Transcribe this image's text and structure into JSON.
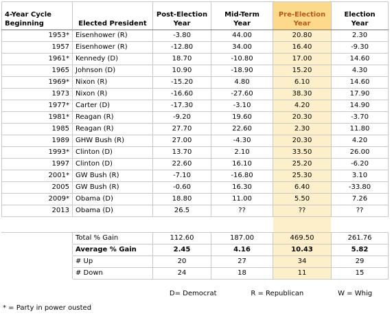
{
  "header": {
    "columns": [
      [
        "4-Year Cycle",
        "Beginning"
      ],
      [
        "Elected President"
      ],
      [
        "Post-Election",
        "Year"
      ],
      [
        "Mid-Term",
        "Year"
      ],
      [
        "Pre-Election",
        "Year"
      ],
      [
        "Election",
        "Year"
      ]
    ]
  },
  "table": {
    "rows": [
      [
        "1953*",
        "Eisenhower (R)",
        "-3.80",
        "44.00",
        "20.80",
        "2.30"
      ],
      [
        "1957",
        "Eisenhower (R)",
        "-12.80",
        "34.00",
        "16.40",
        "-9.30"
      ],
      [
        "1961*",
        "Kennedy (D)",
        "18.70",
        "-10.80",
        "17.00",
        "14.60"
      ],
      [
        "1965",
        "Johnson (D)",
        "10.90",
        "-18.90",
        "15.20",
        "4.30"
      ],
      [
        "1969*",
        "Nixon (R)",
        "-15.20",
        "4.80",
        "6.10",
        "14.60"
      ],
      [
        "1973",
        "Nixon (R)",
        "-16.60",
        "-27.60",
        "38.30",
        "17.90"
      ],
      [
        "1977*",
        "Carter (D)",
        "-17.30",
        "-3.10",
        "4.20",
        "14.90"
      ],
      [
        "1981*",
        "Reagan (R)",
        "-9.20",
        "19.60",
        "20.30",
        "-3.70"
      ],
      [
        "1985",
        "Reagan (R)",
        "27.70",
        "22.60",
        "2.30",
        "11.80"
      ],
      [
        "1989",
        "GHW Bush (R)",
        "27.00",
        "-4.30",
        "20.30",
        "4.20"
      ],
      [
        "1993*",
        "Clinton (D)",
        "13.70",
        "2.10",
        "33.50",
        "26.00"
      ],
      [
        "1997",
        "Clinton (D)",
        "22.60",
        "16.10",
        "25.20",
        "-6.20"
      ],
      [
        "2001*",
        "GW Bush (R)",
        "-7.10",
        "-16.80",
        "25.30",
        "3.10"
      ],
      [
        "2005",
        "GW Bush (R)",
        "-0.60",
        "16.30",
        "6.40",
        "-33.80"
      ],
      [
        "2009*",
        "Obama (D)",
        "18.80",
        "11.00",
        "5.50",
        "7.26"
      ],
      [
        "2013",
        "Obama (D)",
        "26.5",
        "??",
        "??",
        "??"
      ]
    ]
  },
  "summary": {
    "rows": [
      [
        "Total % Gain",
        "112.60",
        "187.00",
        "469.50",
        "261.76"
      ],
      [
        "Average % Gain",
        "2.45",
        "4.16",
        "10.43",
        "5.82"
      ],
      [
        "# Up",
        "20",
        "27",
        "34",
        "29"
      ],
      [
        "# Down",
        "24",
        "18",
        "11",
        "15"
      ]
    ]
  },
  "legend": [
    "D= Democrat",
    "R = Republican",
    "W = Whig"
  ],
  "footnote": "* = Party in power ousted"
}
